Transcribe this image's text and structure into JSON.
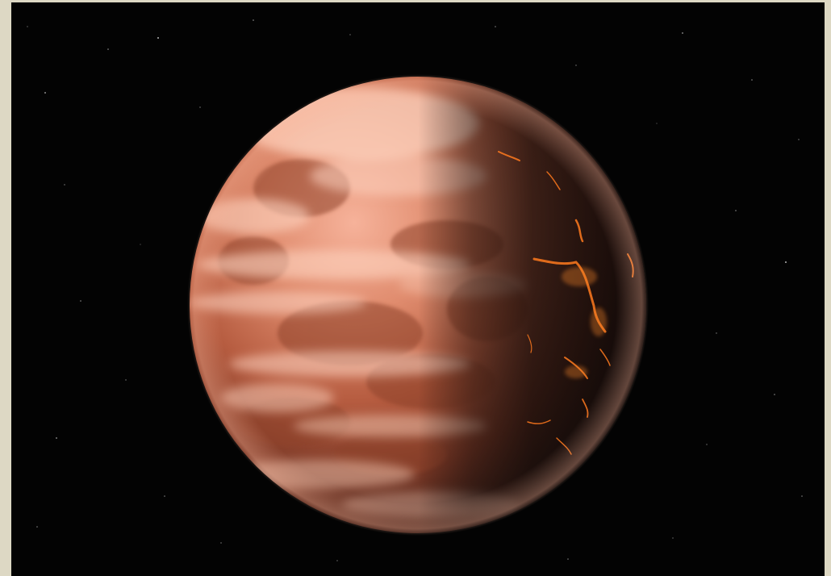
{
  "image": {
    "subject": "planet-illustration",
    "colors": {
      "page_background": "#ddd8c4",
      "space": "#030303",
      "planet_lit": "#f2a48b",
      "planet_mid": "#b55c3f",
      "planet_dark": "#2a1a16",
      "clouds": "#ffd8c6",
      "lava": "#ff7a1e"
    }
  }
}
